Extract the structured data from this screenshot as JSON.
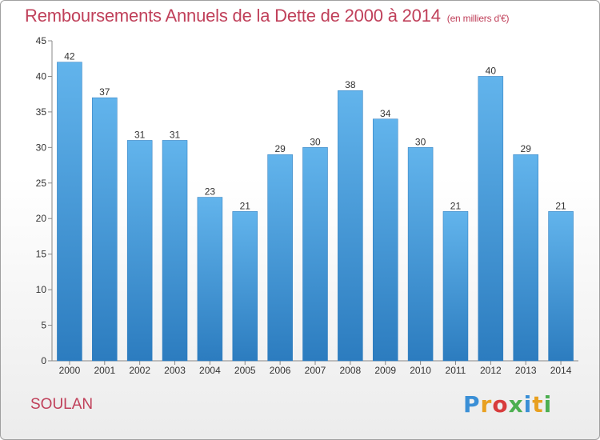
{
  "title": "Remboursements Annuels de la Dette de 2000 à 2014",
  "unit": "(en milliers d'€)",
  "commune": "SOULAN",
  "logo": {
    "text": "Proxiti",
    "colors": [
      "#3a8fd6",
      "#e8a020",
      "#d83c3c",
      "#4caf50",
      "#3a8fd6",
      "#e8a020",
      "#4caf50"
    ]
  },
  "colors": {
    "bar_top": "#62b4ec",
    "bar_bottom": "#2c7cbf",
    "accent": "#c0405a"
  },
  "chart_data": {
    "type": "bar",
    "categories": [
      "2000",
      "2001",
      "2002",
      "2003",
      "2004",
      "2005",
      "2006",
      "2007",
      "2008",
      "2009",
      "2010",
      "2011",
      "2012",
      "2013",
      "2014"
    ],
    "values": [
      42,
      37,
      31,
      31,
      23,
      21,
      29,
      30,
      38,
      34,
      30,
      21,
      40,
      29,
      21
    ],
    "ylim": [
      0,
      45
    ],
    "yticks": [
      0,
      5,
      10,
      15,
      20,
      25,
      30,
      35,
      40,
      45
    ],
    "grid": false,
    "title": "Remboursements Annuels de la Dette de 2000 à 2014",
    "xlabel": "",
    "ylabel": ""
  }
}
